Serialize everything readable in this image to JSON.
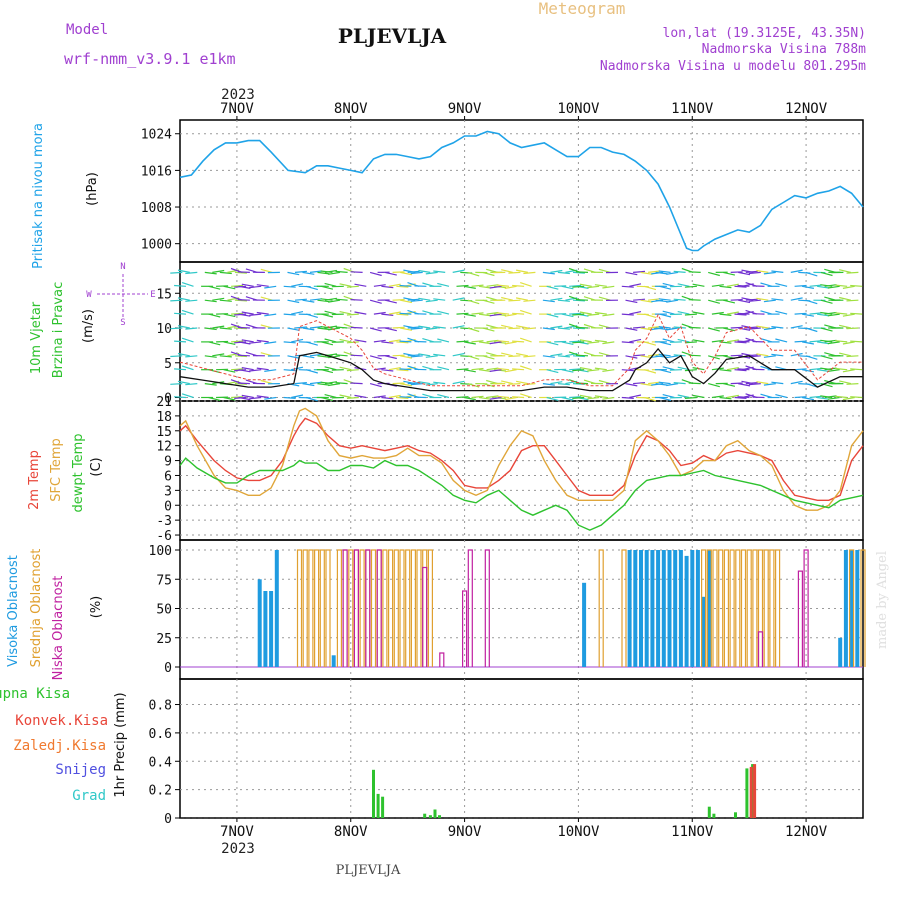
{
  "header": {
    "model_label": "Model",
    "model_name": "wrf-nmm_v3.9.1 e1km",
    "place": "PLJEVLJA",
    "chart_title": "Meteogram",
    "coords": "lon,lat (19.3125E, 43.35N)",
    "elevation": "Nadmorska Visina 788m",
    "model_elevation": "Nadmorska Visina u modelu 801.295m",
    "year": "2023",
    "footer_place": "PLJEVLJA",
    "watermark": "made by Angel"
  },
  "colors": {
    "pressure": "#1fa3e8",
    "temp2m": "#e8463a",
    "sfc": "#e0a63a",
    "dewpt": "#2ec22e",
    "high_cloud": "#1f9be0",
    "mid_cloud": "#e0a030",
    "low_cloud": "#c020a0",
    "precip_total": "#2ec22e",
    "precip_conv": "#e8463a",
    "precip_frozen": "#f07a30",
    "snow": "#5050e0",
    "hail": "#30c8c8"
  },
  "x_axis": {
    "ticks": [
      "7NOV",
      "8NOV",
      "9NOV",
      "10NOV",
      "11NOV",
      "12NOV"
    ],
    "year": "2023"
  },
  "panels": {
    "pressure": {
      "label": "Pritisak na nivou mora",
      "unit": "(hPa)",
      "ticks": [
        "1024",
        "1016",
        "1008",
        "1000"
      ]
    },
    "wind": {
      "label1": "10m Vjetar",
      "label2": "Brzina i Pravac",
      "unit": "(m/s)",
      "ticks": [
        "15",
        "10",
        "5",
        "0"
      ],
      "compass_n": "N",
      "compass_s": "S",
      "compass_w": "W",
      "compass_e": "E"
    },
    "temp": {
      "label1": "2m Temp",
      "label2": "SFC Temp",
      "label3": "dewpt Temp",
      "unit": "(C)",
      "ticks": [
        "21",
        "18",
        "15",
        "12",
        "9",
        "6",
        "3",
        "0",
        "-3",
        "-6"
      ]
    },
    "cloud": {
      "label1": "Visoka Oblacnost",
      "label2": "Srednja Oblacnost",
      "label3": "Niska Oblacnost",
      "unit": "(%)",
      "ticks": [
        "100",
        "75",
        "50",
        "25",
        "0"
      ]
    },
    "precip": {
      "label_total": "Ukupna Kisa",
      "label_conv": "Konvek.Kisa",
      "label_frozen": "Zaledj.Kisa",
      "label_snow": "Snijeg",
      "label_hail": "Grad",
      "unit": "1hr Precip (mm)",
      "ticks": [
        "0.8",
        "0.6",
        "0.4",
        "0.2",
        "0"
      ]
    }
  },
  "chart_data": [
    {
      "type": "line",
      "title": "Pritisak na nivou mora",
      "ylabel": "(hPa)",
      "ylim": [
        996,
        1027
      ],
      "x": [
        6.5,
        6.6,
        6.7,
        6.8,
        6.9,
        7.0,
        7.1,
        7.2,
        7.3,
        7.45,
        7.6,
        7.7,
        7.8,
        7.9,
        8.0,
        8.1,
        8.2,
        8.3,
        8.4,
        8.5,
        8.6,
        8.7,
        8.8,
        8.9,
        9.0,
        9.1,
        9.2,
        9.3,
        9.4,
        9.5,
        9.6,
        9.7,
        9.8,
        9.9,
        10.0,
        10.1,
        10.2,
        10.3,
        10.4,
        10.5,
        10.6,
        10.7,
        10.8,
        10.9,
        10.95,
        11.0,
        11.05,
        11.1,
        11.2,
        11.3,
        11.4,
        11.5,
        11.6,
        11.7,
        11.8,
        11.9,
        12.0,
        12.1,
        12.2,
        12.3,
        12.4,
        12.5
      ],
      "series": [
        {
          "name": "Pritisak na nivou mora",
          "values": [
            1014.5,
            1015,
            1018,
            1020.5,
            1022,
            1022,
            1022.5,
            1022.5,
            1020,
            1016,
            1015.5,
            1017,
            1017,
            1016.5,
            1016,
            1015.5,
            1018.5,
            1019.5,
            1019.5,
            1019,
            1018.5,
            1019,
            1021,
            1022,
            1023.5,
            1023.5,
            1024.5,
            1024,
            1022,
            1021,
            1021.5,
            1022,
            1020.5,
            1019,
            1019,
            1021,
            1021,
            1020,
            1019.5,
            1018,
            1016,
            1013,
            1008,
            1002,
            999,
            998.5,
            998.5,
            999.5,
            1001,
            1002,
            1003,
            1002.5,
            1004,
            1007.5,
            1009,
            1010.5,
            1010,
            1011,
            1011.5,
            1012.5,
            1011,
            1008
          ]
        }
      ]
    },
    {
      "type": "line",
      "title": "10m Vjetar Brzina i Pravac",
      "ylabel": "(m/s)",
      "ylim": [
        -0.5,
        19.5
      ],
      "x": [
        6.5,
        6.7,
        6.9,
        7.1,
        7.3,
        7.5,
        7.55,
        7.7,
        7.9,
        8.0,
        8.1,
        8.2,
        8.3,
        8.5,
        8.7,
        8.9,
        9.1,
        9.3,
        9.5,
        9.7,
        9.9,
        10.1,
        10.3,
        10.45,
        10.5,
        10.6,
        10.7,
        10.8,
        10.9,
        11.0,
        11.1,
        11.2,
        11.3,
        11.5,
        11.6,
        11.7,
        11.9,
        12.1,
        12.3,
        12.5
      ],
      "series": [
        {
          "name": "Brzina",
          "values": [
            3,
            2.5,
            2,
            1.5,
            1.5,
            2,
            6,
            6.5,
            5.5,
            5,
            4,
            2.5,
            2,
            1.5,
            1,
            1,
            1,
            1,
            1,
            1.5,
            1.5,
            1,
            1,
            2.5,
            4,
            5,
            7,
            5,
            6,
            3,
            2,
            3.5,
            5.5,
            6,
            5,
            4,
            4,
            1.5,
            3,
            3
          ]
        }
      ]
    },
    {
      "type": "line",
      "title": "2m Temp / SFC Temp / dewpt Temp",
      "ylabel": "(C)",
      "ylim": [
        -7,
        21
      ],
      "x": [
        6.5,
        6.55,
        6.65,
        6.8,
        6.9,
        7.0,
        7.1,
        7.2,
        7.3,
        7.4,
        7.5,
        7.55,
        7.6,
        7.7,
        7.8,
        7.9,
        8.0,
        8.1,
        8.2,
        8.3,
        8.4,
        8.5,
        8.6,
        8.7,
        8.8,
        8.9,
        9.0,
        9.1,
        9.2,
        9.3,
        9.4,
        9.5,
        9.6,
        9.7,
        9.8,
        9.9,
        10.0,
        10.1,
        10.2,
        10.3,
        10.4,
        10.5,
        10.6,
        10.7,
        10.8,
        10.9,
        11.0,
        11.1,
        11.2,
        11.3,
        11.4,
        11.5,
        11.6,
        11.7,
        11.8,
        11.9,
        12.0,
        12.1,
        12.2,
        12.3,
        12.4,
        12.5
      ],
      "series": [
        {
          "name": "2m Temp",
          "values": [
            15,
            16,
            13,
            9,
            7,
            5.5,
            5,
            5,
            6,
            9,
            14,
            16,
            17.5,
            16.5,
            14,
            12,
            11.5,
            12,
            11.5,
            11,
            11.5,
            12,
            11,
            10.5,
            9,
            7,
            4,
            3.5,
            3.5,
            5,
            7,
            11,
            12,
            12,
            9,
            6,
            3,
            2,
            2,
            2,
            4,
            10,
            14,
            13,
            11,
            8,
            8.5,
            10,
            9,
            10.5,
            11,
            10.5,
            10,
            9,
            5,
            2,
            1.5,
            1,
            1,
            2,
            9,
            12
          ]
        },
        {
          "name": "SFC Temp",
          "values": [
            16,
            17,
            12,
            6,
            3.5,
            3,
            2,
            2,
            3.5,
            8,
            16,
            19,
            19.5,
            18,
            13,
            10,
            9.5,
            10,
            9.5,
            9.5,
            10,
            11.5,
            10,
            10,
            8.5,
            5,
            3,
            2,
            3,
            8,
            12,
            15,
            14,
            9,
            5,
            2,
            1,
            1,
            1,
            1,
            3,
            13,
            15,
            13,
            10,
            6,
            7,
            9,
            9,
            12,
            13,
            11,
            10,
            8,
            3,
            0,
            -1,
            -1,
            0,
            3,
            12,
            15
          ]
        },
        {
          "name": "dewpt Temp",
          "values": [
            8,
            9.5,
            7.5,
            5.5,
            4.5,
            4.5,
            6,
            7,
            7,
            7,
            8,
            9,
            8.5,
            8.5,
            7,
            7,
            8,
            8,
            7.5,
            9,
            8,
            8,
            7,
            5.5,
            4,
            2,
            1,
            0.5,
            2,
            3,
            1,
            -1,
            -2,
            -1,
            0,
            -1,
            -4,
            -5,
            -4,
            -2,
            0,
            3,
            5,
            5.5,
            6,
            6,
            6.5,
            7,
            6,
            5.5,
            5,
            4.5,
            4,
            3,
            2,
            1,
            0.5,
            0,
            -0.5,
            1,
            1.5,
            2
          ]
        }
      ]
    },
    {
      "type": "bar",
      "title": "Visoka / Srednja / Niska Oblacnost",
      "ylabel": "(%)",
      "ylim": [
        0,
        100
      ],
      "series": [
        {
          "name": "Visoka Oblacnost",
          "points": [
            [
              7.2,
              75
            ],
            [
              7.25,
              65
            ],
            [
              7.3,
              65
            ],
            [
              7.35,
              100
            ],
            [
              7.85,
              10
            ],
            [
              10.05,
              72
            ],
            [
              10.45,
              100
            ],
            [
              10.5,
              100
            ],
            [
              10.55,
              100
            ],
            [
              10.6,
              100
            ],
            [
              10.65,
              100
            ],
            [
              10.7,
              100
            ],
            [
              10.75,
              100
            ],
            [
              10.8,
              100
            ],
            [
              10.85,
              100
            ],
            [
              10.9,
              100
            ],
            [
              10.95,
              95
            ],
            [
              11.0,
              100
            ],
            [
              11.05,
              100
            ],
            [
              11.1,
              60
            ],
            [
              11.15,
              100
            ],
            [
              12.3,
              25
            ],
            [
              12.35,
              100
            ],
            [
              12.4,
              100
            ],
            [
              12.45,
              100
            ]
          ]
        },
        {
          "name": "Srednja Oblacnost",
          "points": [
            [
              7.55,
              100
            ],
            [
              7.6,
              100
            ],
            [
              7.65,
              100
            ],
            [
              7.7,
              100
            ],
            [
              7.75,
              100
            ],
            [
              7.8,
              100
            ],
            [
              7.9,
              100
            ],
            [
              7.95,
              100
            ],
            [
              8.0,
              100
            ],
            [
              8.05,
              100
            ],
            [
              8.1,
              100
            ],
            [
              8.15,
              100
            ],
            [
              8.2,
              100
            ],
            [
              8.25,
              100
            ],
            [
              8.3,
              100
            ],
            [
              8.35,
              100
            ],
            [
              8.4,
              100
            ],
            [
              8.45,
              100
            ],
            [
              8.5,
              100
            ],
            [
              8.55,
              100
            ],
            [
              8.6,
              100
            ],
            [
              8.65,
              100
            ],
            [
              8.7,
              100
            ],
            [
              10.2,
              100
            ],
            [
              10.4,
              100
            ],
            [
              11.1,
              100
            ],
            [
              11.15,
              100
            ],
            [
              11.2,
              100
            ],
            [
              11.25,
              100
            ],
            [
              11.3,
              100
            ],
            [
              11.35,
              100
            ],
            [
              11.4,
              100
            ],
            [
              11.45,
              100
            ],
            [
              11.5,
              100
            ],
            [
              11.55,
              100
            ],
            [
              11.6,
              100
            ],
            [
              11.65,
              100
            ],
            [
              11.7,
              100
            ],
            [
              11.75,
              100
            ],
            [
              12.4,
              100
            ],
            [
              12.5,
              100
            ]
          ]
        },
        {
          "name": "Niska Oblacnost",
          "points": [
            [
              7.95,
              100
            ],
            [
              8.05,
              100
            ],
            [
              8.15,
              100
            ],
            [
              8.25,
              100
            ],
            [
              8.65,
              85
            ],
            [
              8.8,
              12
            ],
            [
              9.0,
              65
            ],
            [
              9.05,
              100
            ],
            [
              9.2,
              100
            ],
            [
              11.6,
              30
            ],
            [
              11.95,
              82
            ],
            [
              12.0,
              100
            ]
          ]
        }
      ]
    },
    {
      "type": "bar",
      "title": "1hr Precip",
      "ylabel": "1hr Precip (mm)",
      "ylim": [
        0,
        0.98
      ],
      "series": [
        {
          "name": "Ukupna Kisa",
          "points": [
            [
              8.2,
              0.34
            ],
            [
              8.24,
              0.17
            ],
            [
              8.28,
              0.15
            ],
            [
              8.65,
              0.03
            ],
            [
              8.7,
              0.02
            ],
            [
              8.74,
              0.06
            ],
            [
              8.78,
              0.02
            ],
            [
              11.15,
              0.08
            ],
            [
              11.19,
              0.03
            ],
            [
              11.38,
              0.04
            ],
            [
              11.48,
              0.35
            ],
            [
              11.53,
              0.38
            ]
          ]
        },
        {
          "name": "Konvek.Kisa",
          "points": [
            [
              11.5,
              0.36
            ],
            [
              11.53,
              0.38
            ]
          ]
        },
        {
          "name": "Zaledj.Kisa",
          "points": []
        },
        {
          "name": "Snijeg",
          "points": []
        },
        {
          "name": "Grad",
          "points": []
        }
      ]
    }
  ]
}
